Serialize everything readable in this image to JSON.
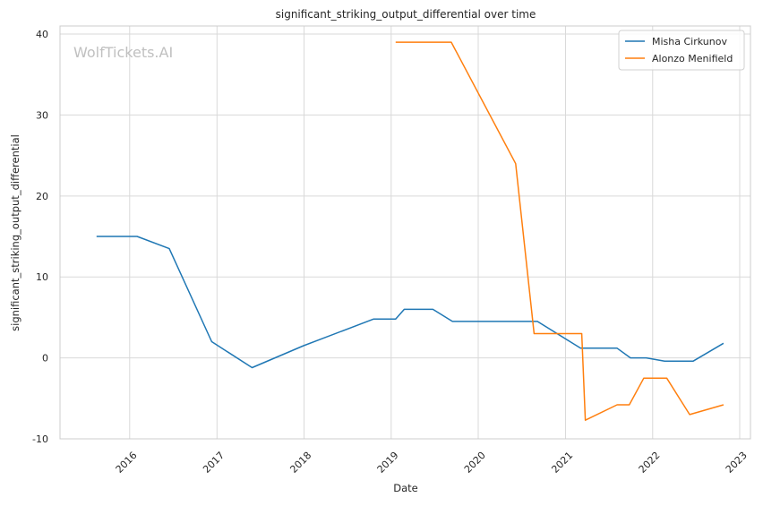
{
  "chart_data": {
    "type": "line",
    "title": "significant_striking_output_differential over time",
    "xlabel": "Date",
    "ylabel": "significant_striking_output_differential",
    "watermark": "WolfTickets.AI",
    "xlim": [
      "2015-03-15",
      "2023-02-15"
    ],
    "ylim": [
      -10,
      41
    ],
    "x_ticks": [
      "2016",
      "2017",
      "2018",
      "2019",
      "2020",
      "2021",
      "2022",
      "2023"
    ],
    "y_ticks": [
      -10,
      0,
      10,
      20,
      30,
      40
    ],
    "grid": true,
    "legend_position": "top-right",
    "series": [
      {
        "name": "Misha Cirkunov",
        "color": "#1f77b4",
        "points": [
          [
            "2015-08-15",
            15.0
          ],
          [
            "2016-02-01",
            15.0
          ],
          [
            "2016-06-15",
            13.5
          ],
          [
            "2016-12-10",
            2.0
          ],
          [
            "2017-05-28",
            -1.2
          ],
          [
            "2017-12-30",
            1.5
          ],
          [
            "2018-10-20",
            4.8
          ],
          [
            "2019-01-20",
            4.8
          ],
          [
            "2019-02-25",
            6.0
          ],
          [
            "2019-06-25",
            6.0
          ],
          [
            "2019-09-15",
            4.5
          ],
          [
            "2020-09-05",
            4.5
          ],
          [
            "2021-03-05",
            1.2
          ],
          [
            "2021-08-05",
            1.2
          ],
          [
            "2021-09-30",
            0.0
          ],
          [
            "2021-12-05",
            0.0
          ],
          [
            "2022-02-20",
            -0.4
          ],
          [
            "2022-06-20",
            -0.4
          ],
          [
            "2022-10-25",
            1.8
          ]
        ]
      },
      {
        "name": "Alonzo Menifield",
        "color": "#ff7f0e",
        "points": [
          [
            "2019-01-20",
            39.0
          ],
          [
            "2019-09-10",
            39.0
          ],
          [
            "2020-06-06",
            24.0
          ],
          [
            "2020-08-22",
            3.0
          ],
          [
            "2021-03-10",
            3.0
          ],
          [
            "2021-03-25",
            -7.7
          ],
          [
            "2021-08-05",
            -5.8
          ],
          [
            "2021-09-25",
            -5.8
          ],
          [
            "2021-11-25",
            -2.5
          ],
          [
            "2022-03-01",
            -2.5
          ],
          [
            "2022-06-05",
            -7.0
          ],
          [
            "2022-10-25",
            -5.8
          ]
        ]
      }
    ]
  }
}
